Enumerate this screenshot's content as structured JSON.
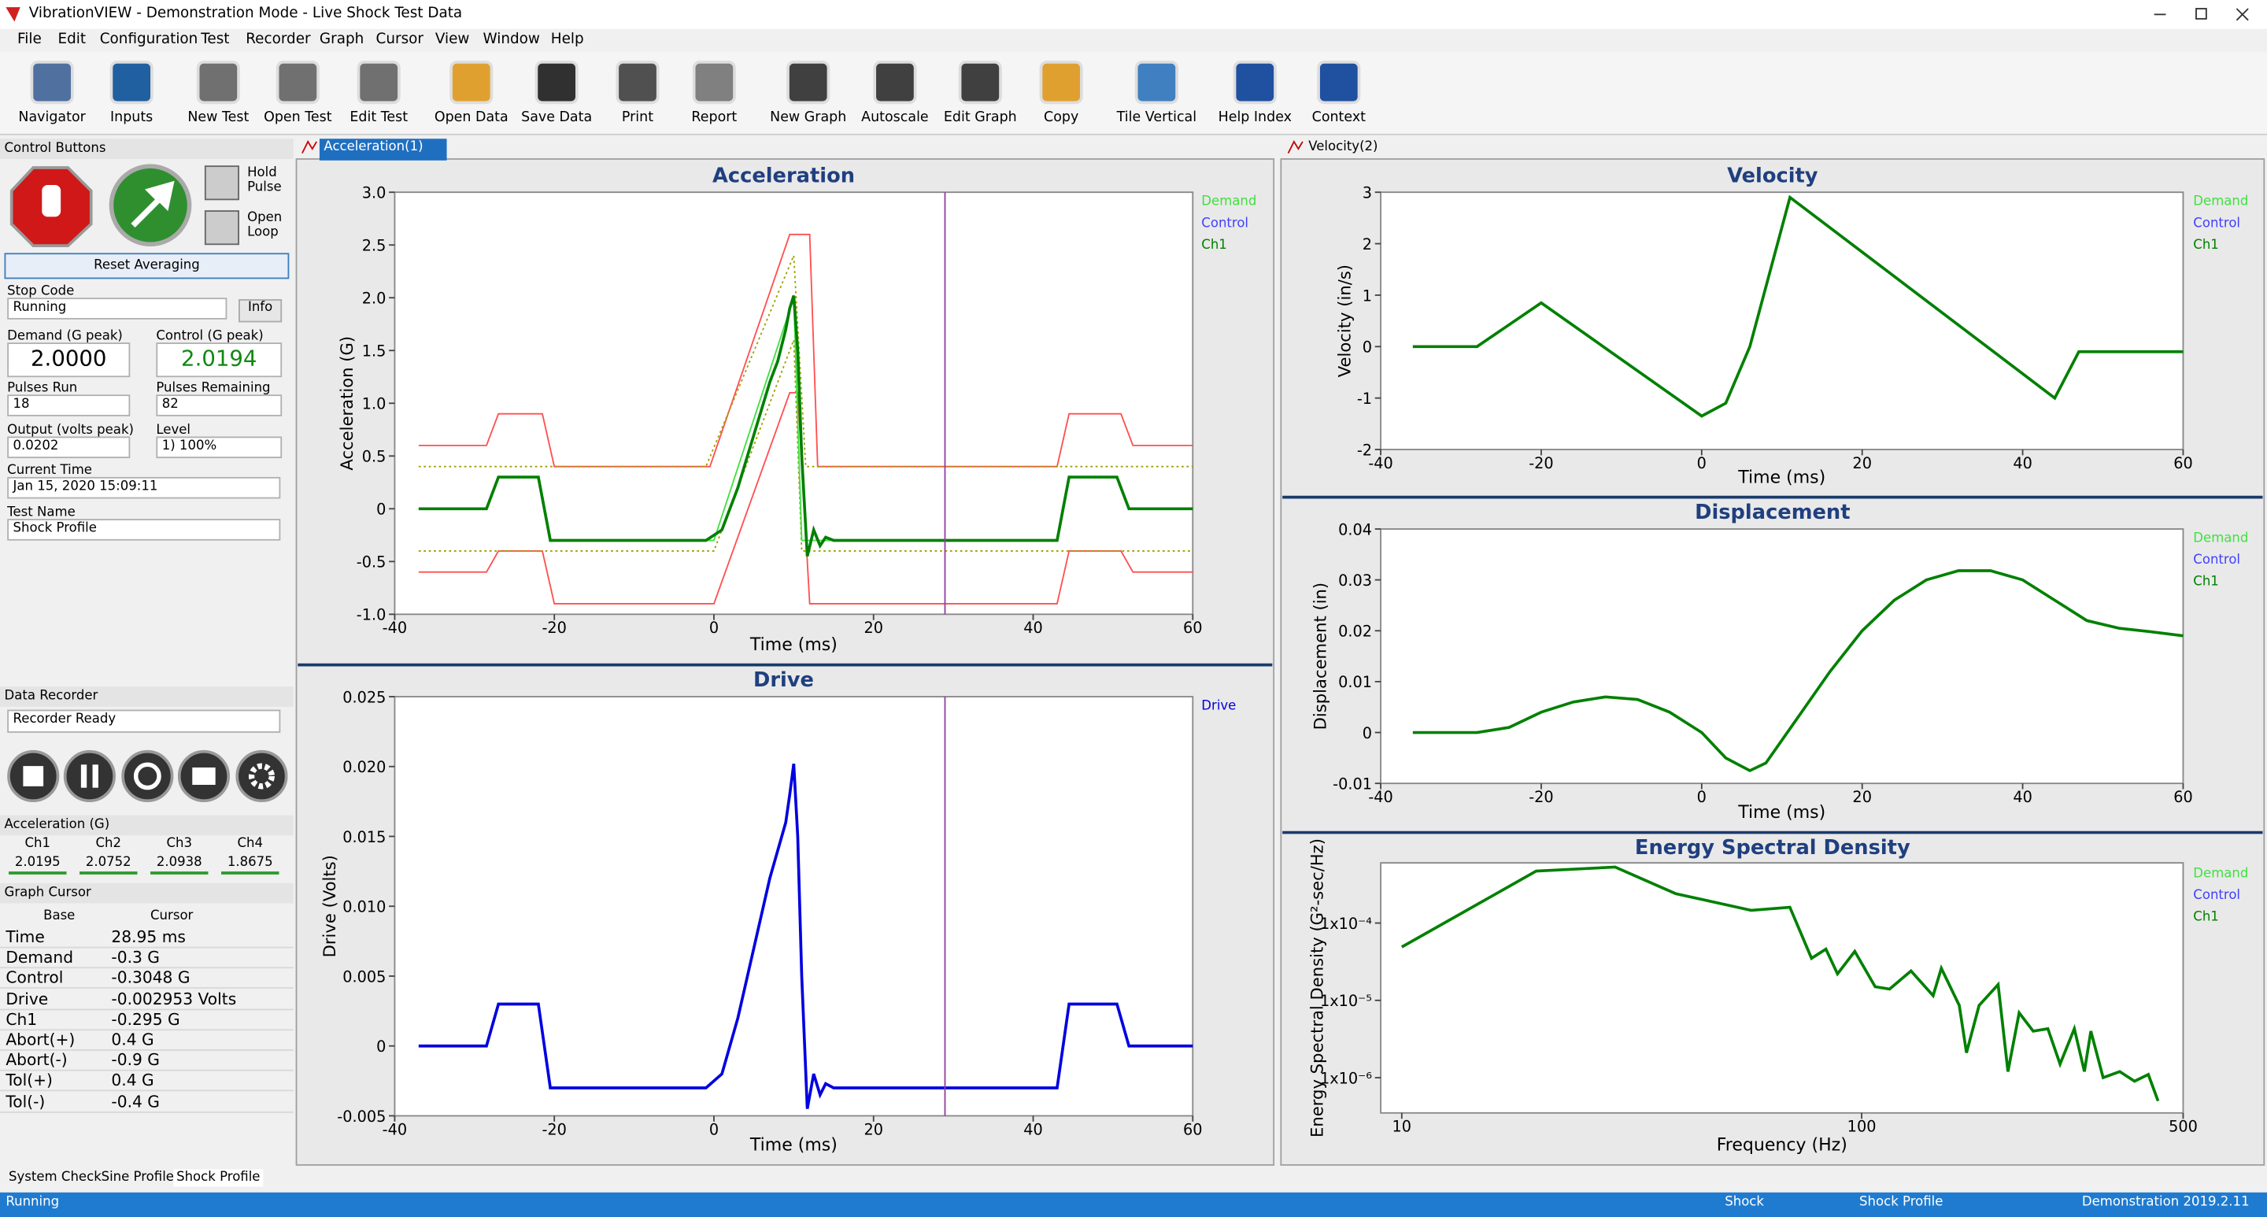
{
  "window": {
    "title": "VibrationVIEW - Demonstration Mode - Live Shock Test Data"
  },
  "menu": [
    "File",
    "Edit",
    "Configuration",
    "Test",
    "Recorder",
    "Graph",
    "Cursor",
    "View",
    "Window",
    "Help"
  ],
  "toolbar": [
    "Navigator",
    "Inputs",
    "New Test",
    "Open Test",
    "Edit Test",
    "Open Data",
    "Save Data",
    "Print",
    "Report",
    "New Graph",
    "Autoscale",
    "Edit Graph",
    "Copy",
    "Tile Vertical",
    "Help Index",
    "Context"
  ],
  "control_buttons": {
    "title": "Control Buttons",
    "hold": "Hold Pulse",
    "open": "Open Loop",
    "reset": "Reset Averaging",
    "info": "Info",
    "fields": [
      {
        "label": "Stop Code",
        "value": "Running"
      },
      {
        "label": "Demand (G peak)",
        "value": "2.0000"
      },
      {
        "label": "Control (G peak)",
        "value": "2.0194"
      },
      {
        "label": "Pulses Run",
        "value": "18"
      },
      {
        "label": "Pulses Remaining",
        "value": "82"
      },
      {
        "label": "Output (volts peak)",
        "value": "0.0202"
      },
      {
        "label": "Level",
        "value": "1) 100%"
      },
      {
        "label": "Current Time",
        "value": "Jan 15, 2020 15:09:11"
      },
      {
        "label": "Test Name",
        "value": "Shock Profile"
      }
    ]
  },
  "data_recorder": {
    "title": "Data Recorder",
    "status": "Recorder Ready"
  },
  "channels": {
    "title": "Acceleration (G)",
    "names": [
      "Ch1",
      "Ch2",
      "Ch3",
      "Ch4"
    ],
    "values": [
      "2.0195",
      "2.0752",
      "2.0938",
      "1.8675"
    ]
  },
  "graph_cursor": {
    "title": "Graph Cursor",
    "base": "Base",
    "cursor": "Cursor",
    "rows": [
      [
        "Time",
        "28.95 ms"
      ],
      [
        "Demand",
        "-0.3 G"
      ],
      [
        "Control",
        "-0.3048 G"
      ],
      [
        "Drive",
        "-0.002953 Volts"
      ],
      [
        "Ch1",
        "-0.295 G"
      ],
      [
        "Abort(+)",
        "0.4 G"
      ],
      [
        "Abort(-)",
        "-0.9 G"
      ],
      [
        "Tol(+)",
        "0.4 G"
      ],
      [
        "Tol(-)",
        "-0.4 G"
      ]
    ]
  },
  "doc_tabs": [
    "Acceleration(1)",
    "Velocity(2)"
  ],
  "bottom_tabs": [
    "System Check",
    "Sine Profile",
    "Shock Profile"
  ],
  "status": {
    "left": "Running",
    "items": [
      "Shock",
      "Shock Profile",
      "Demonstration",
      "2019.2.11"
    ]
  },
  "charts": [
    {
      "type": "line",
      "title": "Acceleration",
      "xlabel": "Time (ms)",
      "ylabel": "Acceleration (G)",
      "xlim": [
        -40,
        60
      ],
      "ylim": [
        -1,
        3
      ],
      "xticks": [
        -40,
        -20,
        0,
        20,
        40,
        60
      ],
      "yticks": [
        {
          "value": -1,
          "label": "-1.0"
        },
        -0.5,
        0,
        0.5,
        {
          "value": 1,
          "label": "1.0"
        },
        1.5,
        {
          "value": 2,
          "label": "2.0"
        },
        2.5,
        {
          "value": 3,
          "label": "3.0"
        }
      ],
      "cursor": 28.95,
      "series": [
        {
          "color": "#ff5050",
          "x": [
            -37,
            -28.5,
            -27,
            -21.5,
            -20,
            -0.5,
            9.5,
            12,
            13,
            43,
            44.5,
            51,
            52.5,
            60
          ],
          "values": [
            0.6,
            0.6,
            0.9,
            0.9,
            0.4,
            0.4,
            2.6,
            2.6,
            0.4,
            0.4,
            0.9,
            0.9,
            0.6,
            0.6
          ]
        },
        {
          "color": "#ff5050",
          "x": [
            -37,
            -28.5,
            -27,
            -21.5,
            -20,
            0,
            9.5,
            10.5,
            12,
            43,
            44.5,
            51,
            52.5,
            60
          ],
          "values": [
            -0.6,
            -0.6,
            -0.4,
            -0.4,
            -0.9,
            -0.9,
            1.1,
            1.1,
            -0.9,
            -0.9,
            -0.4,
            -0.4,
            -0.6,
            -0.6
          ]
        },
        {
          "color": "#a0a000",
          "dash": true,
          "x": [
            -37,
            -1,
            10,
            11.5,
            60
          ],
          "values": [
            0.4,
            0.4,
            2.4,
            0.4,
            0.4
          ]
        },
        {
          "color": "#a0a000",
          "dash": true,
          "x": [
            -37,
            0,
            10,
            11,
            60
          ],
          "values": [
            -0.4,
            -0.4,
            1.6,
            -0.4,
            -0.4
          ]
        },
        {
          "name": "Demand",
          "color": "#40e040",
          "x": [
            -37,
            -28.5,
            -27,
            -22,
            -20.5,
            0,
            10,
            11,
            43,
            44.5,
            50.5,
            52,
            60
          ],
          "values": [
            0,
            0,
            0.3,
            0.3,
            -0.3,
            -0.3,
            2.0,
            -0.3,
            -0.3,
            0.3,
            0.3,
            0,
            0
          ]
        },
        {
          "name": "Control",
          "color": "#4040ff"
        },
        {
          "name": "Ch1",
          "color": "#008000",
          "x": [
            -37,
            -28.5,
            -27,
            -22,
            -20.5,
            -1,
            1,
            3,
            5,
            7,
            8,
            9,
            9.5,
            10,
            10.5,
            11,
            11.7,
            12.5,
            13.3,
            14,
            15,
            43,
            44.5,
            50.5,
            52,
            60
          ],
          "values": [
            0,
            0,
            0.3,
            0.3,
            -0.3,
            -0.3,
            -0.2,
            0.2,
            0.7,
            1.2,
            1.4,
            1.7,
            1.9,
            2.02,
            1.5,
            0.5,
            -0.45,
            -0.2,
            -0.35,
            -0.27,
            -0.3,
            -0.3,
            0.3,
            0.3,
            0,
            0
          ]
        }
      ]
    },
    {
      "type": "line",
      "title": "Drive",
      "xlabel": "Time (ms)",
      "ylabel": "Drive (Volts)",
      "xlim": [
        -40,
        60
      ],
      "ylim": [
        -0.005,
        0.025
      ],
      "xticks": [
        -40,
        -20,
        0,
        20,
        40,
        60
      ],
      "yticks": [
        -0.005,
        0,
        0.005,
        {
          "value": 0.01,
          "label": "0.010"
        },
        0.015,
        {
          "value": 0.02,
          "label": "0.020"
        },
        0.025
      ],
      "cursor": 28.95,
      "series": [
        {
          "name": "Drive",
          "color": "#0000e0",
          "x": [
            -37,
            -28.5,
            -27,
            -22,
            -20.5,
            -1,
            1,
            3,
            5,
            7,
            8,
            9,
            9.5,
            10,
            10.5,
            11,
            11.7,
            12.5,
            13.3,
            14,
            15,
            43,
            44.5,
            50.5,
            52,
            60
          ],
          "values": [
            0,
            0,
            0.003,
            0.003,
            -0.003,
            -0.003,
            -0.002,
            0.002,
            0.007,
            0.012,
            0.014,
            0.016,
            0.018,
            0.0202,
            0.015,
            0.005,
            -0.0045,
            -0.002,
            -0.0035,
            -0.0027,
            -0.003,
            -0.003,
            0.003,
            0.003,
            0,
            0
          ]
        }
      ]
    },
    {
      "type": "line",
      "title": "Velocity",
      "xlabel": "Time (ms)",
      "ylabel": "Velocity (in/s)",
      "xlim": [
        -40,
        60
      ],
      "ylim": [
        -2,
        3
      ],
      "xticks": [
        -40,
        -20,
        0,
        20,
        40,
        60
      ],
      "yticks": [
        -2,
        -1,
        0,
        1,
        2,
        3
      ],
      "series": [
        {
          "name": "Demand",
          "color": "#40e040"
        },
        {
          "name": "Control",
          "color": "#4040ff"
        },
        {
          "name": "Ch1",
          "color": "#008000",
          "x": [
            -36,
            -28,
            -20,
            0,
            3,
            6,
            11,
            44,
            47,
            60
          ],
          "values": [
            0,
            0,
            0.85,
            -1.35,
            -1.1,
            0,
            2.9,
            -1.0,
            -0.1,
            -0.1
          ]
        }
      ]
    },
    {
      "type": "line",
      "title": "Displacement",
      "xlabel": "Time (ms)",
      "ylabel": "Displacement (in)",
      "xlim": [
        -40,
        60
      ],
      "ylim": [
        -0.01,
        0.04
      ],
      "xticks": [
        -40,
        -20,
        0,
        20,
        40,
        60
      ],
      "yticks": [
        -0.01,
        0,
        0.01,
        0.02,
        0.03,
        0.04
      ],
      "series": [
        {
          "name": "Demand",
          "color": "#40e040"
        },
        {
          "name": "Control",
          "color": "#4040ff"
        },
        {
          "name": "Ch1",
          "color": "#008000",
          "x": [
            -36,
            -28,
            -24,
            -20,
            -16,
            -12,
            -8,
            -4,
            0,
            3,
            6,
            8,
            12,
            16,
            20,
            24,
            28,
            32,
            36,
            40,
            44,
            48,
            52,
            56,
            60
          ],
          "values": [
            0,
            0,
            0.001,
            0.004,
            0.006,
            0.007,
            0.0065,
            0.004,
            0,
            -0.005,
            -0.0075,
            -0.006,
            0.003,
            0.012,
            0.02,
            0.026,
            0.03,
            0.0318,
            0.0318,
            0.03,
            0.026,
            0.022,
            0.0205,
            0.0198,
            0.019
          ]
        }
      ]
    },
    {
      "type": "line",
      "title": "Energy Spectral Density",
      "xlabel": "Frequency (Hz)",
      "ylabel": "Energy Spectral Density (G²-sec/Hz)",
      "xlog": true,
      "ylog": true,
      "xlim": [
        9,
        500
      ],
      "ylim": [
        3.5e-07,
        0.0006
      ],
      "xticks": [
        10,
        100,
        500
      ],
      "yticks": [
        {
          "value": 1e-06,
          "label": "1x10⁻⁶"
        },
        {
          "value": 1e-05,
          "label": "1x10⁻⁵"
        },
        {
          "value": 0.0001,
          "label": "1x10⁻⁴"
        }
      ],
      "series": [
        {
          "name": "Demand",
          "color": "#40e040"
        },
        {
          "name": "Control",
          "color": "#4040ff"
        },
        {
          "name": "Ch1",
          "color": "#008000",
          "x": [
            10,
            19.6,
            29.1,
            39.4,
            57.5,
            69.8,
            77.8,
            83.6,
            88.6,
            96.6,
            107,
            115,
            128,
            143,
            149,
            163,
            169,
            180,
            198,
            208,
            220,
            236,
            254,
            270,
            290,
            305,
            315,
            335,
            364,
            392,
            420,
            441
          ],
          "values": [
            4.9e-05,
            0.00047,
            0.00053,
            0.00024,
            0.000146,
            0.00016,
            3.5e-05,
            4.6e-05,
            2.2e-05,
            4.3e-05,
            1.5e-05,
            1.4e-05,
            2.4e-05,
            1.15e-05,
            2.6e-05,
            8.6e-06,
            2.1e-06,
            8.6e-06,
            1.6e-05,
            1.2e-06,
            6.9e-06,
            4e-06,
            4.3e-06,
            1.5e-06,
            4.3e-06,
            1.2e-06,
            4e-06,
            1e-06,
            1.2e-06,
            9e-07,
            1.1e-06,
            5e-07
          ]
        }
      ]
    }
  ]
}
